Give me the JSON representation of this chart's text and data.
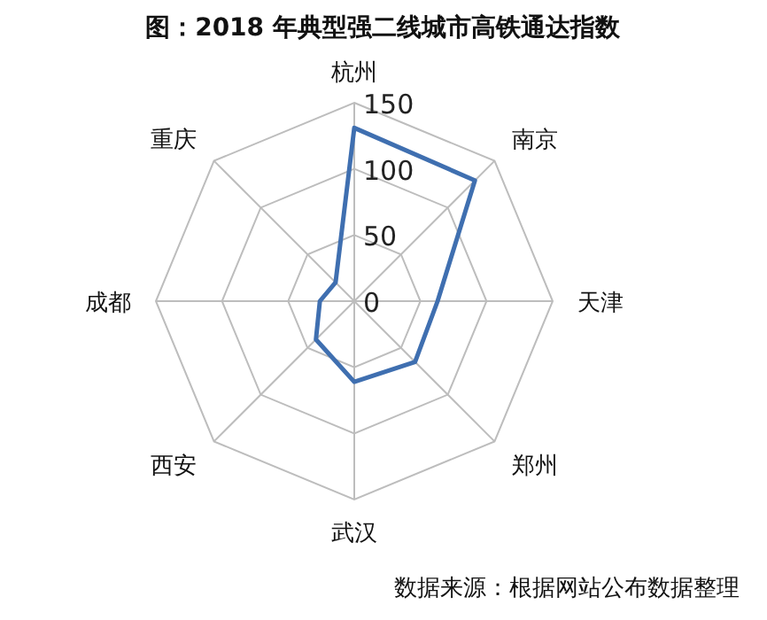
{
  "chart_data": {
    "type": "radar",
    "title": "图：2018 年典型强二线城市高铁通达指数",
    "categories": [
      "杭州",
      "南京",
      "天津",
      "郑州",
      "武汉",
      "西安",
      "成都",
      "重庆"
    ],
    "series": [
      {
        "color": "#3f6fb0",
        "values": [
          131,
          129,
          63,
          65,
          61,
          41,
          26,
          20
        ]
      }
    ],
    "ylim": [
      0,
      150
    ],
    "yticks": [
      0,
      50,
      100,
      150
    ],
    "grid": true,
    "annotations": [
      "数据来源：根据网站公布数据整理"
    ]
  }
}
